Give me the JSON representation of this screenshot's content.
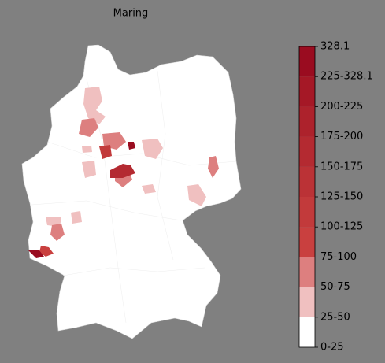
{
  "title": "Maring",
  "colorbar": {
    "labels": [
      "0-25",
      "25-50",
      "50-75",
      "75-100",
      "100-125",
      "125-150",
      "150-175",
      "175-200",
      "200-225",
      "225-328.1",
      "328.1"
    ],
    "colors": [
      "#ffffff",
      "#f0c0c0",
      "#dd7f7f",
      "#c9403f",
      "#c23a3b",
      "#bb3236",
      "#b42a31",
      "#ad222c",
      "#a51826",
      "#9a0c20"
    ]
  }
}
